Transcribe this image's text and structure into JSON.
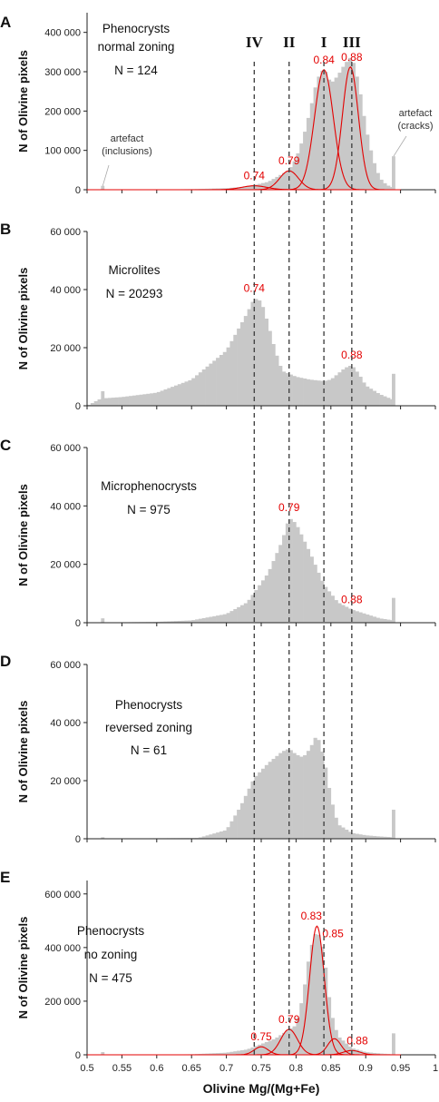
{
  "x_axis": {
    "label": "Olivine Mg/(Mg+Fe)",
    "ticks": [
      0.5,
      0.55,
      0.6,
      0.65,
      0.7,
      0.75,
      0.8,
      0.85,
      0.9,
      0.95,
      1
    ],
    "tick_labels": [
      "0.5",
      "0.55",
      "0.6",
      "0.65",
      "0.7",
      "0.75",
      "0.8",
      "0.85",
      "0.9",
      "0.95",
      "1"
    ],
    "range": [
      0.5,
      1.0
    ]
  },
  "ylabel": "N of Olivine pixels",
  "colors": {
    "bars": "#c8c8c8",
    "fit": "#e30000",
    "dashed": "#444444"
  },
  "vlines": [
    {
      "label": "IV",
      "x": 0.74
    },
    {
      "label": "II",
      "x": 0.79
    },
    {
      "label": "I",
      "x": 0.84
    },
    {
      "label": "III",
      "x": 0.88
    }
  ],
  "chart_data": [
    {
      "type": "bar",
      "letter": "A",
      "annotation": [
        "Phenocrysts",
        "normal zoning",
        "N = 124"
      ],
      "ylim": [
        0,
        450000
      ],
      "yticks": [
        0,
        100000,
        200000,
        300000,
        400000
      ],
      "ytick_labels": [
        "0",
        "100 000",
        "200 000",
        "300 000",
        "400 000"
      ],
      "x": [
        0.5225,
        0.94
      ],
      "y": [
        10000,
        85000
      ],
      "profile": [
        [
          0.5,
          0
        ],
        [
          0.6,
          500
        ],
        [
          0.65,
          1500
        ],
        [
          0.7,
          4000
        ],
        [
          0.73,
          8000
        ],
        [
          0.76,
          20000
        ],
        [
          0.79,
          50000
        ],
        [
          0.8,
          80000
        ],
        [
          0.81,
          130000
        ],
        [
          0.82,
          200000
        ],
        [
          0.83,
          280000
        ],
        [
          0.84,
          310000
        ],
        [
          0.85,
          270000
        ],
        [
          0.86,
          290000
        ],
        [
          0.87,
          320000
        ],
        [
          0.88,
          340000
        ],
        [
          0.89,
          270000
        ],
        [
          0.9,
          160000
        ],
        [
          0.91,
          80000
        ],
        [
          0.92,
          30000
        ],
        [
          0.93,
          12000
        ],
        [
          0.94,
          5000
        ]
      ],
      "fits": [
        {
          "mu": 0.74,
          "sigma": 0.018,
          "amp": 10000
        },
        {
          "mu": 0.79,
          "sigma": 0.0135,
          "amp": 48000
        },
        {
          "mu": 0.84,
          "sigma": 0.0135,
          "amp": 305000
        },
        {
          "mu": 0.878,
          "sigma": 0.0115,
          "amp": 312000
        }
      ],
      "peaks": [
        {
          "text": "0.74",
          "x": 0.74,
          "y": 10000
        },
        {
          "text": "0.79",
          "x": 0.79,
          "y": 48000
        },
        {
          "text": "0.84",
          "x": 0.84,
          "y": 305000
        },
        {
          "text": "0.88",
          "x": 0.88,
          "y": 312000
        }
      ],
      "notes": [
        {
          "lines": [
            "artefact",
            "(inclusions)"
          ],
          "at": [
            0.5225,
            10000
          ]
        },
        {
          "lines": [
            "artefact",
            "(cracks)"
          ],
          "at": [
            0.94,
            85000
          ]
        }
      ]
    },
    {
      "type": "bar",
      "letter": "B",
      "annotation": [
        "Microlites",
        "N = 20293"
      ],
      "ylim": [
        0,
        60000
      ],
      "yticks": [
        0,
        20000,
        40000,
        60000
      ],
      "ytick_labels": [
        "0",
        "20 000",
        "40 000",
        "60 000"
      ],
      "x": [
        0.5225,
        0.94
      ],
      "y": [
        5000,
        11000
      ],
      "profile": [
        [
          0.5,
          0
        ],
        [
          0.52,
          2500
        ],
        [
          0.55,
          3000
        ],
        [
          0.6,
          4500
        ],
        [
          0.65,
          9000
        ],
        [
          0.7,
          19000
        ],
        [
          0.73,
          32000
        ],
        [
          0.74,
          37000
        ],
        [
          0.75,
          36000
        ],
        [
          0.76,
          28000
        ],
        [
          0.77,
          19000
        ],
        [
          0.78,
          12000
        ],
        [
          0.8,
          10000
        ],
        [
          0.82,
          9000
        ],
        [
          0.84,
          8500
        ],
        [
          0.85,
          9000
        ],
        [
          0.86,
          11000
        ],
        [
          0.87,
          13000
        ],
        [
          0.88,
          14000
        ],
        [
          0.89,
          11000
        ],
        [
          0.9,
          7000
        ],
        [
          0.92,
          4000
        ],
        [
          0.94,
          2000
        ]
      ],
      "fits": [],
      "peaks": [
        {
          "text": "0.74",
          "x": 0.74,
          "y": 37000
        },
        {
          "text": "0.88",
          "x": 0.88,
          "y": 14000
        }
      ],
      "notes": []
    },
    {
      "type": "bar",
      "letter": "C",
      "annotation": [
        "Microphenocrysts",
        "N = 975"
      ],
      "ylim": [
        0,
        60000
      ],
      "yticks": [
        0,
        20000,
        40000,
        60000
      ],
      "ytick_labels": [
        "0",
        "20 000",
        "40 000",
        "60 000"
      ],
      "x": [
        0.5225,
        0.94
      ],
      "y": [
        1500,
        8500
      ],
      "profile": [
        [
          0.5,
          0
        ],
        [
          0.6,
          300
        ],
        [
          0.65,
          800
        ],
        [
          0.7,
          3000
        ],
        [
          0.73,
          7000
        ],
        [
          0.76,
          17000
        ],
        [
          0.78,
          28000
        ],
        [
          0.79,
          36000
        ],
        [
          0.8,
          34000
        ],
        [
          0.82,
          24000
        ],
        [
          0.84,
          13000
        ],
        [
          0.86,
          7000
        ],
        [
          0.88,
          4500
        ],
        [
          0.9,
          3000
        ],
        [
          0.92,
          1500
        ],
        [
          0.94,
          800
        ]
      ],
      "fits": [],
      "peaks": [
        {
          "text": "0.79",
          "x": 0.79,
          "y": 36000
        },
        {
          "text": "0.88",
          "x": 0.88,
          "y": 4500
        }
      ],
      "notes": []
    },
    {
      "type": "bar",
      "letter": "D",
      "annotation": [
        "Phenocrysts",
        "reversed zoning",
        "N = 61"
      ],
      "ylim": [
        0,
        60000
      ],
      "yticks": [
        0,
        20000,
        40000,
        60000
      ],
      "ytick_labels": [
        "0",
        "20 000",
        "40 000",
        "60 000"
      ],
      "x": [
        0.5225,
        0.94
      ],
      "y": [
        500,
        10000
      ],
      "profile": [
        [
          0.5,
          0
        ],
        [
          0.66,
          300
        ],
        [
          0.7,
          3000
        ],
        [
          0.72,
          11000
        ],
        [
          0.74,
          21000
        ],
        [
          0.76,
          26000
        ],
        [
          0.78,
          30000
        ],
        [
          0.79,
          31000
        ],
        [
          0.8,
          29000
        ],
        [
          0.81,
          28000
        ],
        [
          0.82,
          31000
        ],
        [
          0.83,
          36000
        ],
        [
          0.84,
          28000
        ],
        [
          0.85,
          14000
        ],
        [
          0.86,
          5000
        ],
        [
          0.88,
          2000
        ],
        [
          0.9,
          1200
        ],
        [
          0.92,
          800
        ],
        [
          0.94,
          500
        ]
      ],
      "fits": [],
      "peaks": [],
      "notes": []
    },
    {
      "type": "bar",
      "letter": "E",
      "annotation": [
        "Phenocrysts",
        "no zoning",
        "N = 475"
      ],
      "ylim": [
        0,
        650000
      ],
      "yticks": [
        0,
        200000,
        400000,
        600000
      ],
      "ytick_labels": [
        "0",
        "200 000",
        "400 000",
        "600 000"
      ],
      "x": [
        0.5225,
        0.94
      ],
      "y": [
        10000,
        80000
      ],
      "profile": [
        [
          0.5,
          0
        ],
        [
          0.6,
          500
        ],
        [
          0.65,
          2000
        ],
        [
          0.7,
          8000
        ],
        [
          0.73,
          20000
        ],
        [
          0.75,
          40000
        ],
        [
          0.77,
          60000
        ],
        [
          0.79,
          95000
        ],
        [
          0.8,
          110000
        ],
        [
          0.81,
          220000
        ],
        [
          0.82,
          390000
        ],
        [
          0.83,
          470000
        ],
        [
          0.84,
          380000
        ],
        [
          0.85,
          160000
        ],
        [
          0.86,
          70000
        ],
        [
          0.88,
          25000
        ],
        [
          0.9,
          10000
        ],
        [
          0.92,
          5000
        ],
        [
          0.94,
          2000
        ]
      ],
      "fits": [
        {
          "mu": 0.75,
          "sigma": 0.01,
          "amp": 30000
        },
        {
          "mu": 0.79,
          "sigma": 0.012,
          "amp": 95000
        },
        {
          "mu": 0.83,
          "sigma": 0.0105,
          "amp": 480000
        },
        {
          "mu": 0.855,
          "sigma": 0.0095,
          "amp": 60000
        },
        {
          "mu": 0.88,
          "sigma": 0.012,
          "amp": 16000
        }
      ],
      "peaks": [
        {
          "text": "0.75",
          "x": 0.75,
          "y": 30000
        },
        {
          "text": "0.79",
          "x": 0.79,
          "y": 95000
        },
        {
          "text": "0.83",
          "x": 0.822,
          "y": 480000
        },
        {
          "text": "0.85",
          "x": 0.853,
          "y": 415000
        },
        {
          "text": "0.88",
          "x": 0.888,
          "y": 16000
        }
      ],
      "notes": []
    }
  ]
}
